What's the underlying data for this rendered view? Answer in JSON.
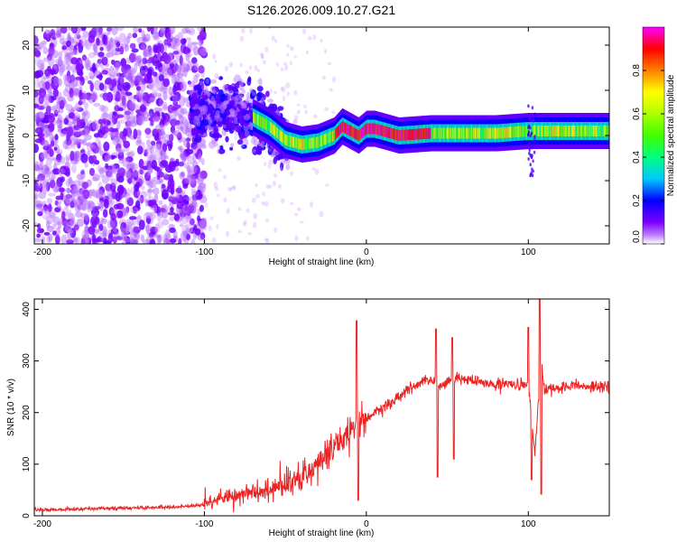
{
  "figure_title": "S126.2026.009.10.27.G21",
  "chart_data": [
    {
      "type": "heatmap",
      "xlabel": "Height of straight line (km)",
      "ylabel": "Frequency (Hz)",
      "xlim": [
        -205,
        150
      ],
      "ylim": [
        -24,
        24
      ],
      "xticks": [
        -200,
        -100,
        0,
        100
      ],
      "yticks": [
        -20,
        -10,
        0,
        10,
        20
      ],
      "colorbar": {
        "label": "Normalized spectral amplitude",
        "range": [
          0,
          1
        ],
        "ticks": [
          0.0,
          0.2,
          0.4,
          0.6,
          0.8
        ],
        "tick_labels": [
          "0.0",
          "0.2",
          "0.4",
          "0.6",
          "0.8"
        ],
        "colormap": [
          "#ffffff",
          "#b04cff",
          "#5a00ff",
          "#0000ff",
          "#00c8ff",
          "#00ff80",
          "#60ff00",
          "#ffff00",
          "#ff8000",
          "#ff0000",
          "#ff00ff"
        ]
      },
      "ridge_frequency_hz": [
        [
          -105,
          6
        ],
        [
          -90,
          5
        ],
        [
          -80,
          6
        ],
        [
          -70,
          4
        ],
        [
          -60,
          2
        ],
        [
          -50,
          -1
        ],
        [
          -40,
          -2
        ],
        [
          -30,
          -1.5
        ],
        [
          -20,
          0
        ],
        [
          -15,
          2
        ],
        [
          -10,
          1
        ],
        [
          -5,
          0
        ],
        [
          0,
          1.5
        ],
        [
          5,
          1.5
        ],
        [
          10,
          1
        ],
        [
          20,
          0
        ],
        [
          40,
          0.5
        ],
        [
          60,
          0.5
        ],
        [
          80,
          0.5
        ],
        [
          100,
          1
        ],
        [
          110,
          1
        ],
        [
          130,
          1
        ],
        [
          150,
          1
        ]
      ]
    },
    {
      "type": "line",
      "xlabel": "Height of straight line (km)",
      "ylabel": "SNR (10 * v/v)",
      "xlim": [
        -205,
        150
      ],
      "ylim": [
        0,
        420
      ],
      "xticks": [
        -200,
        -100,
        0,
        100
      ],
      "yticks": [
        0,
        100,
        200,
        300,
        400
      ],
      "series": [
        {
          "color": "#ee2222",
          "x": [
            -205,
            -190,
            -170,
            -150,
            -130,
            -110,
            -100,
            -90,
            -80,
            -70,
            -60,
            -50,
            -40,
            -30,
            -20,
            -10,
            -5,
            0,
            10,
            20,
            30,
            40,
            44,
            50,
            55,
            60,
            70,
            80,
            90,
            100,
            104,
            108,
            110,
            120,
            130,
            140,
            150
          ],
          "y": [
            12,
            12,
            14,
            15,
            16,
            18,
            22,
            35,
            40,
            45,
            50,
            60,
            75,
            100,
            135,
            165,
            180,
            190,
            210,
            230,
            255,
            265,
            250,
            260,
            270,
            265,
            260,
            255,
            255,
            250,
            120,
            300,
            245,
            250,
            250,
            250,
            250
          ]
        }
      ],
      "spikes": [
        [
          -6,
          378
        ],
        [
          -5,
          30
        ],
        [
          43,
          362
        ],
        [
          44,
          75
        ],
        [
          53,
          345
        ],
        [
          54,
          110
        ],
        [
          100,
          365
        ],
        [
          102,
          70
        ],
        [
          107,
          420
        ],
        [
          108,
          42
        ]
      ]
    }
  ]
}
